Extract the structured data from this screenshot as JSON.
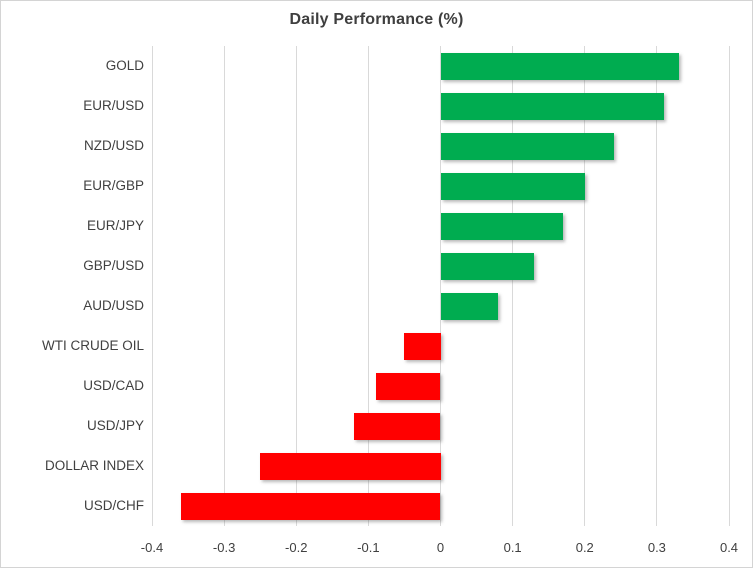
{
  "chart_data": {
    "type": "bar",
    "orientation": "horizontal",
    "title": "Daily Performance (%)",
    "xlabel": "",
    "ylabel": "",
    "categories": [
      "GOLD",
      "EUR/USD",
      "NZD/USD",
      "EUR/GBP",
      "EUR/JPY",
      "GBP/USD",
      "AUD/USD",
      "WTI CRUDE OIL",
      "USD/CAD",
      "USD/JPY",
      "DOLLAR INDEX",
      "USD/CHF"
    ],
    "values": [
      0.33,
      0.31,
      0.24,
      0.2,
      0.17,
      0.13,
      0.08,
      -0.05,
      -0.09,
      -0.12,
      -0.25,
      -0.36
    ],
    "xlim": [
      -0.4,
      0.4
    ],
    "x_tick_labels": [
      "-0.4",
      "-0.3",
      "-0.2",
      "-0.1",
      "0",
      "0.1",
      "0.2",
      "0.3",
      "0.4"
    ],
    "grid": true,
    "legend": "none",
    "colors": {
      "positive_bar": "#00ac50",
      "negative_bar": "#ff0000",
      "gridline": "#d9d9d9",
      "title_text": "#3f3f3f",
      "label_text": "#404040",
      "chart_border": "#d4d4d4"
    }
  }
}
